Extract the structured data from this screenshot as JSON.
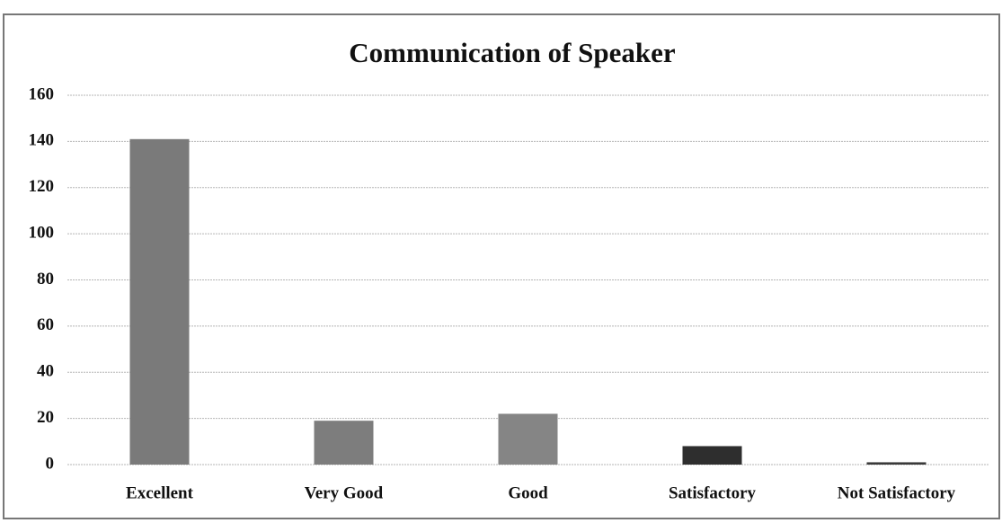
{
  "chart_data": {
    "type": "bar",
    "title": "Communication of Speaker",
    "categories": [
      "Excellent",
      "Very Good",
      "Good",
      "Satisfactory",
      "Not Satisfactory"
    ],
    "values": [
      141,
      19,
      22,
      8,
      1
    ],
    "colors": [
      "#7a7a7a",
      "#7d7d7d",
      "#858585",
      "#2e2e2e",
      "#3a3a3a"
    ],
    "ylim": [
      0,
      160
    ],
    "yticks": [
      0,
      20,
      40,
      60,
      80,
      100,
      120,
      140,
      160
    ],
    "grid": true
  }
}
